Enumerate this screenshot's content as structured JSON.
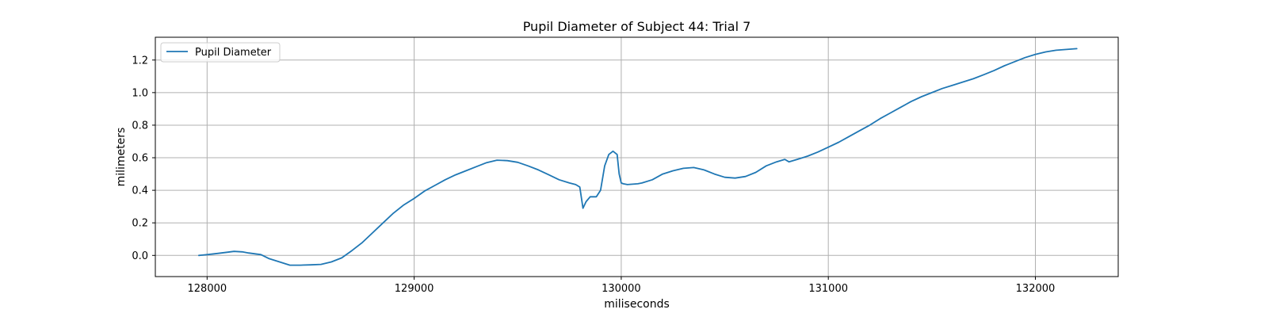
{
  "chart_data": {
    "type": "line",
    "title": "Pupil Diameter of Subject 44: Trial 7",
    "xlabel": "miliseconds",
    "ylabel": "milimeters",
    "xlim": [
      127750,
      132400
    ],
    "ylim": [
      -0.13,
      1.34
    ],
    "xticks": [
      128000,
      129000,
      130000,
      131000,
      132000
    ],
    "yticks": [
      0.0,
      0.2,
      0.4,
      0.6,
      0.8,
      1.0,
      1.2
    ],
    "xtick_labels": [
      "128000",
      "129000",
      "130000",
      "131000",
      "132000"
    ],
    "ytick_labels": [
      "0.0",
      "0.2",
      "0.4",
      "0.6",
      "0.8",
      "1.0",
      "1.2"
    ],
    "grid": true,
    "legend_position": "top-left",
    "colors": {
      "series": "#1f77b4",
      "grid": "#b0b0b0",
      "axes": "#000000"
    },
    "series": [
      {
        "name": "Pupil Diameter",
        "x": [
          127960,
          128000,
          128050,
          128100,
          128130,
          128170,
          128200,
          128260,
          128300,
          128350,
          128400,
          128450,
          128500,
          128550,
          128600,
          128650,
          128700,
          128750,
          128800,
          128850,
          128900,
          128950,
          129000,
          129050,
          129100,
          129150,
          129200,
          129250,
          129300,
          129350,
          129400,
          129450,
          129500,
          129550,
          129600,
          129650,
          129700,
          129750,
          129780,
          129800,
          129815,
          129830,
          129850,
          129880,
          129900,
          129920,
          129940,
          129960,
          129980,
          129990,
          130000,
          130010,
          130030,
          130080,
          130100,
          130150,
          130200,
          130250,
          130300,
          130350,
          130400,
          130450,
          130500,
          130550,
          130600,
          130650,
          130700,
          130750,
          130790,
          130810,
          130850,
          130900,
          130950,
          131000,
          131050,
          131100,
          131150,
          131200,
          131250,
          131300,
          131350,
          131400,
          131450,
          131500,
          131550,
          131600,
          131650,
          131700,
          131750,
          131800,
          131850,
          131900,
          131950,
          132000,
          132050,
          132100,
          132150,
          132200
        ],
        "y": [
          0.0,
          0.005,
          0.012,
          0.02,
          0.025,
          0.022,
          0.015,
          0.005,
          -0.02,
          -0.04,
          -0.06,
          -0.06,
          -0.058,
          -0.055,
          -0.04,
          -0.015,
          0.03,
          0.08,
          0.14,
          0.2,
          0.26,
          0.31,
          0.35,
          0.395,
          0.43,
          0.465,
          0.495,
          0.52,
          0.545,
          0.57,
          0.585,
          0.582,
          0.572,
          0.55,
          0.525,
          0.495,
          0.465,
          0.445,
          0.435,
          0.42,
          0.29,
          0.33,
          0.36,
          0.36,
          0.4,
          0.55,
          0.62,
          0.64,
          0.62,
          0.5,
          0.445,
          0.44,
          0.435,
          0.44,
          0.445,
          0.465,
          0.5,
          0.52,
          0.535,
          0.54,
          0.525,
          0.5,
          0.48,
          0.475,
          0.485,
          0.51,
          0.55,
          0.575,
          0.59,
          0.575,
          0.59,
          0.61,
          0.635,
          0.665,
          0.695,
          0.73,
          0.765,
          0.8,
          0.84,
          0.875,
          0.91,
          0.945,
          0.975,
          1.0,
          1.025,
          1.045,
          1.065,
          1.085,
          1.11,
          1.135,
          1.165,
          1.19,
          1.215,
          1.235,
          1.25,
          1.26,
          1.265,
          1.27
        ]
      }
    ]
  }
}
